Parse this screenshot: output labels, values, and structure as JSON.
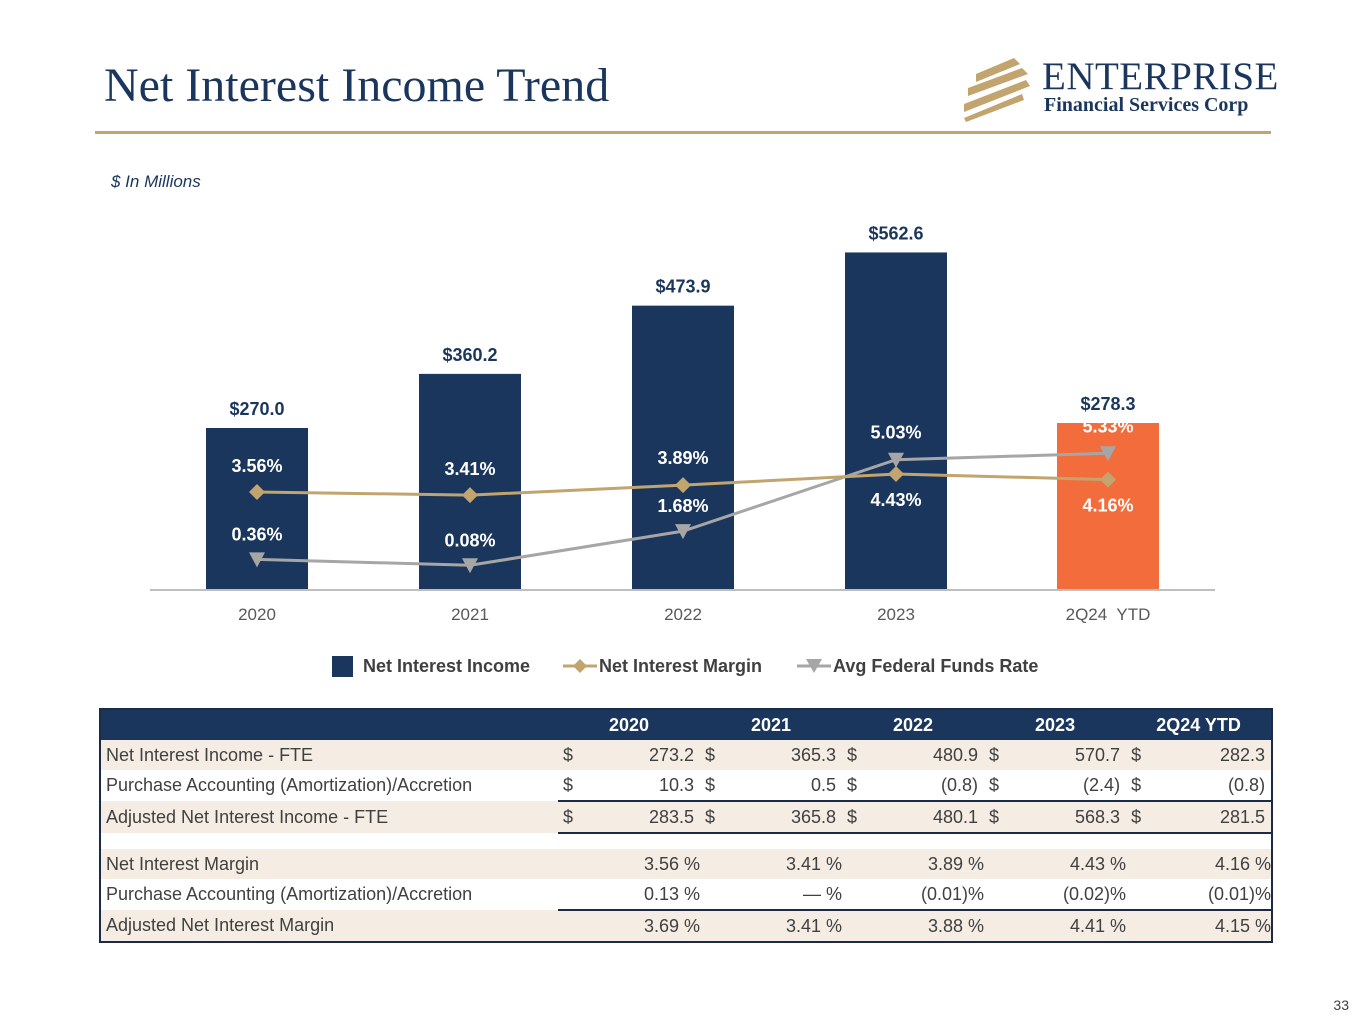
{
  "title": "Net Interest Income Trend",
  "logo": {
    "name": "ENTERPRISE",
    "subtitle": "Financial Services Corp"
  },
  "units_note": "$ In Millions",
  "colors": {
    "navy": "#1b365d",
    "orange": "#f26d3b",
    "gold": "#c2a46f",
    "gray": "#a6a6a6",
    "text": "#404040",
    "shade": "#f5ede3"
  },
  "chart_data": {
    "type": "bar",
    "categories": [
      "2020",
      "2021",
      "2022",
      "2023",
      "2Q24  YTD"
    ],
    "series": [
      {
        "name": "Net Interest Income",
        "kind": "bar",
        "values": [
          270.0,
          360.2,
          473.9,
          562.6,
          278.3
        ],
        "labels": [
          "$270.0",
          "$360.2",
          "$473.9",
          "$562.6",
          "$278.3"
        ],
        "highlight_last": true
      },
      {
        "name": "Net Interest Margin",
        "kind": "line",
        "marker": "diamond",
        "values": [
          3.56,
          3.41,
          3.89,
          4.43,
          4.16
        ],
        "labels": [
          "3.56%",
          "3.41%",
          "3.89%",
          "4.43%",
          "4.16%"
        ]
      },
      {
        "name": "Avg Federal Funds Rate",
        "kind": "line",
        "marker": "triangle-down",
        "values": [
          0.36,
          0.08,
          1.68,
          5.03,
          5.33
        ],
        "labels": [
          "0.36%",
          "0.08%",
          "1.68%",
          "5.03%",
          "5.33%"
        ]
      }
    ],
    "xlabel": "",
    "ylabel": "",
    "ylim": [
      0,
      600
    ]
  },
  "table": {
    "headers": [
      "",
      "2020",
      "2021",
      "2022",
      "2023",
      "2Q24 YTD"
    ],
    "currency_rows": [
      {
        "label": "Net Interest Income - FTE",
        "sym": "$",
        "values": [
          "273.2",
          "365.3",
          "480.9",
          "570.7",
          "282.3"
        ]
      },
      {
        "label": "Purchase Accounting (Amortization)/Accretion",
        "sym": "$",
        "values": [
          "10.3",
          "0.5",
          "(0.8)",
          "(2.4)",
          "(0.8)"
        ]
      },
      {
        "label": "Adjusted Net Interest Income - FTE",
        "sym": "$",
        "values": [
          "283.5",
          "365.8",
          "480.1",
          "568.3",
          "281.5"
        ]
      }
    ],
    "percent_rows": [
      {
        "label": "Net Interest Margin",
        "values": [
          "3.56 %",
          "3.41 %",
          "3.89 %",
          "4.43 %",
          "4.16 %"
        ]
      },
      {
        "label": "Purchase Accounting (Amortization)/Accretion",
        "values": [
          "0.13 %",
          "— %",
          "(0.01)%",
          "(0.02)%",
          "(0.01)%"
        ]
      },
      {
        "label": "Adjusted Net Interest Margin",
        "values": [
          "3.69 %",
          "3.41 %",
          "3.88 %",
          "4.41 %",
          "4.15 %"
        ]
      }
    ]
  },
  "page_number": "33"
}
